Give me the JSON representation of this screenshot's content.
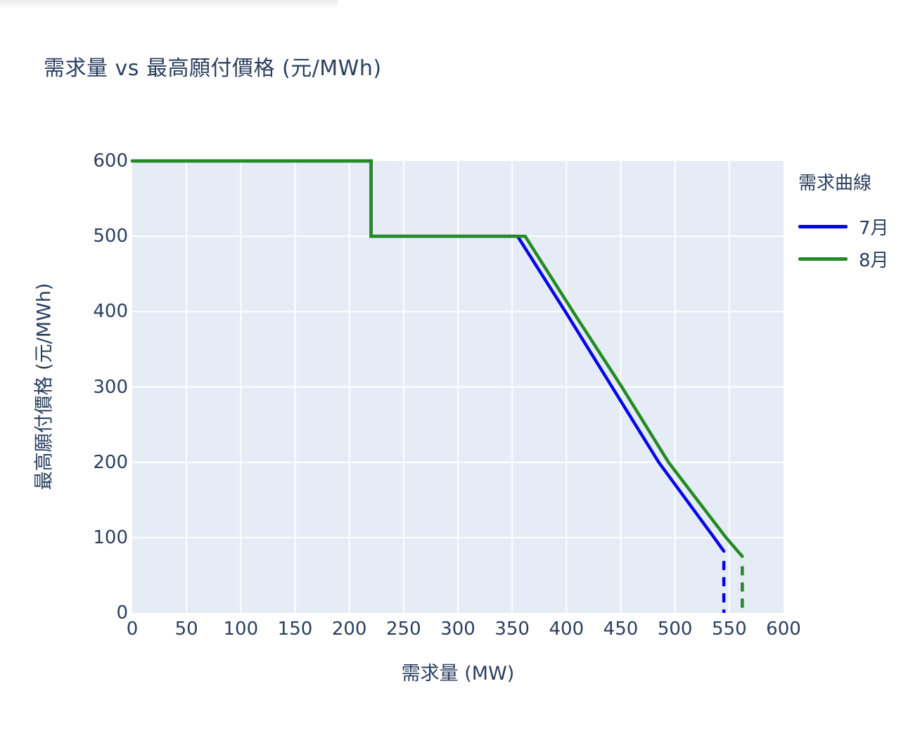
{
  "page": {
    "background": "#ffffff"
  },
  "chart": {
    "title": "需求量 vs 最高願付價格 (元/MWh)",
    "x_axis": {
      "title": "需求量 (MW)",
      "ticks": [
        0,
        50,
        100,
        150,
        200,
        250,
        300,
        350,
        400,
        450,
        500,
        550,
        600
      ]
    },
    "y_axis": {
      "title": "最高願付價格 (元/MWh)",
      "ticks": [
        0,
        100,
        200,
        300,
        400,
        500,
        600
      ]
    },
    "legend": {
      "title": "需求曲線",
      "entries": [
        {
          "label": "7月",
          "color": "#0505e8"
        },
        {
          "label": "8月",
          "color": "#228b22"
        }
      ]
    },
    "colors": {
      "plot_background": "#e5ecf6",
      "gridline": "#ffffff",
      "text": "#2a3f5f",
      "july_line": "#0505e8",
      "august_line": "#228b22"
    }
  },
  "chart_data": {
    "type": "line",
    "title": "需求量 vs 最高願付價格 (元/MWh)",
    "xlabel": "需求量 (MW)",
    "ylabel": "最高願付價格 (元/MWh)",
    "xlim": [
      0,
      600
    ],
    "ylim": [
      0,
      600
    ],
    "grid": true,
    "legend_title": "需求曲線",
    "legend_position": "right",
    "series": [
      {
        "name": "7月",
        "color": "#0505e8",
        "style": "solid",
        "points": [
          [
            0,
            600
          ],
          [
            220,
            600
          ],
          [
            220,
            500
          ],
          [
            355,
            500
          ],
          [
            399,
            400
          ],
          [
            442,
            300
          ],
          [
            485,
            200
          ],
          [
            536,
            100
          ],
          [
            545,
            82
          ]
        ],
        "drop_line": {
          "x": 545,
          "y_top": 82,
          "y_bottom": 0,
          "style": "dashed"
        }
      },
      {
        "name": "8月",
        "color": "#228b22",
        "style": "solid",
        "points": [
          [
            0,
            600
          ],
          [
            220,
            600
          ],
          [
            220,
            500
          ],
          [
            362,
            500
          ],
          [
            406,
            400
          ],
          [
            451,
            300
          ],
          [
            494,
            200
          ],
          [
            547,
            100
          ],
          [
            562,
            75
          ]
        ],
        "drop_line": {
          "x": 562,
          "y_top": 75,
          "y_bottom": 0,
          "style": "dashed"
        }
      }
    ]
  }
}
